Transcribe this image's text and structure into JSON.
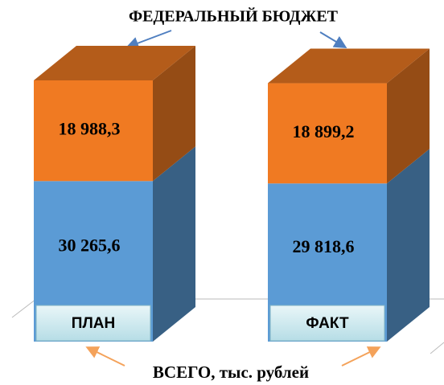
{
  "chart_data": {
    "type": "bar3d_stacked",
    "categories": [
      "ПЛАН",
      "ФАКТ"
    ],
    "series": [
      {
        "color": "#5b9bd5",
        "values": [
          30265.6,
          29818.6
        ],
        "value_labels": [
          "30 265,6",
          "29 818,6"
        ]
      },
      {
        "name": "ФЕДЕРАЛЬНЫЙ БЮДЖЕТ",
        "color": "#f07a22",
        "values": [
          18988.3,
          18899.2
        ],
        "value_labels": [
          "18 988,3",
          "18 899,2"
        ]
      }
    ],
    "annotations": [
      "ВСЕГО, тыс. рублей"
    ]
  }
}
